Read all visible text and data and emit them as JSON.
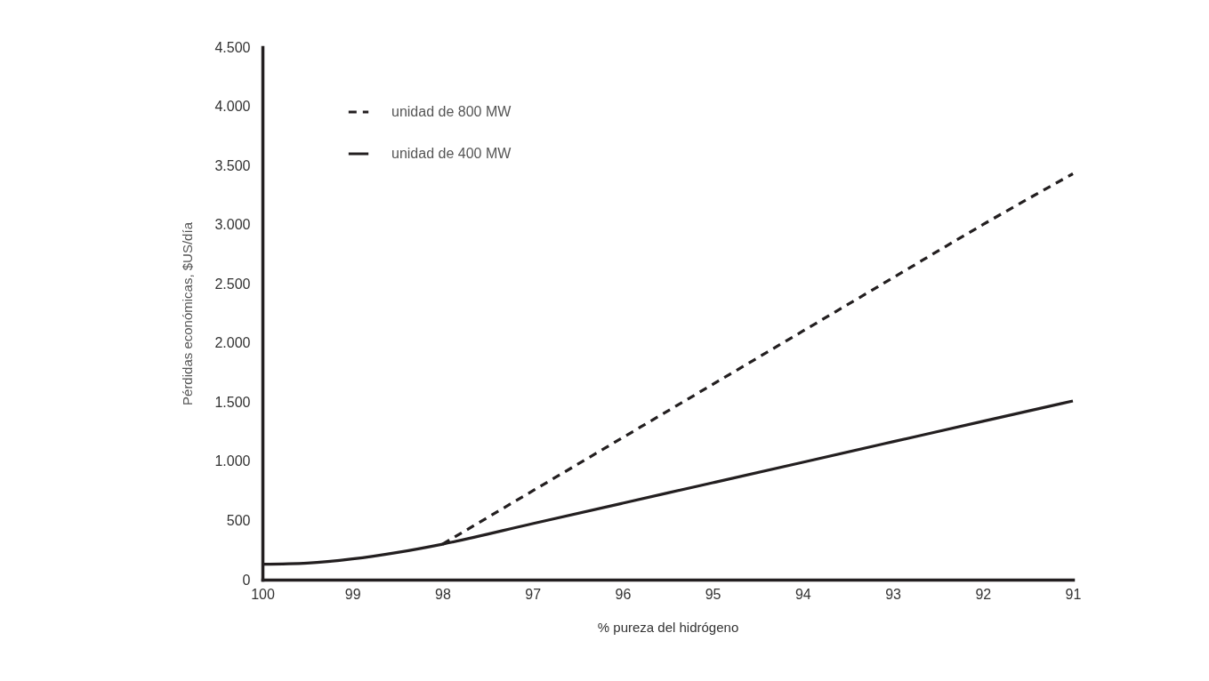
{
  "chart_data": {
    "type": "line",
    "xlabel": "% pureza del hidrógeno",
    "ylabel": "Pérdidas económicas, $US/día",
    "xlim": [
      100,
      91
    ],
    "xticks": [
      100,
      99,
      98,
      97,
      96,
      95,
      94,
      93,
      92,
      91
    ],
    "ylim": [
      0,
      4500
    ],
    "yticks": [
      0,
      {
        "value": 500,
        "label": "500"
      },
      {
        "value": 1000,
        "label": "1.000"
      },
      {
        "value": 1500,
        "label": "1.500"
      },
      {
        "value": 2000,
        "label": "2.000"
      },
      {
        "value": 2500,
        "label": "2.500"
      },
      {
        "value": 3000,
        "label": "3.000"
      },
      {
        "value": 3500,
        "label": "3.500"
      },
      {
        "value": 4000,
        "label": "4.000"
      },
      {
        "value": 4500,
        "label": "4.500"
      }
    ],
    "grid": false,
    "legend": "top left",
    "marker": "none",
    "series": [
      {
        "name": "unidad de 800 MW",
        "color": "#231f20",
        "line_style": "dashed",
        "x": [
          98,
          97,
          96,
          95,
          94,
          93,
          92,
          91
        ],
        "values": [
          300,
          750,
          1200,
          1650,
          2100,
          2550,
          3000,
          3430
        ]
      },
      {
        "name": "unidad de 400 MW",
        "color": "#231f20",
        "line_style": "solid",
        "x": [
          100,
          99.5,
          99,
          98.5,
          98,
          97,
          96,
          95,
          94,
          93,
          92,
          91
        ],
        "values": [
          130,
          140,
          175,
          230,
          300,
          473,
          646,
          819,
          992,
          1165,
          1338,
          1510
        ]
      }
    ]
  }
}
